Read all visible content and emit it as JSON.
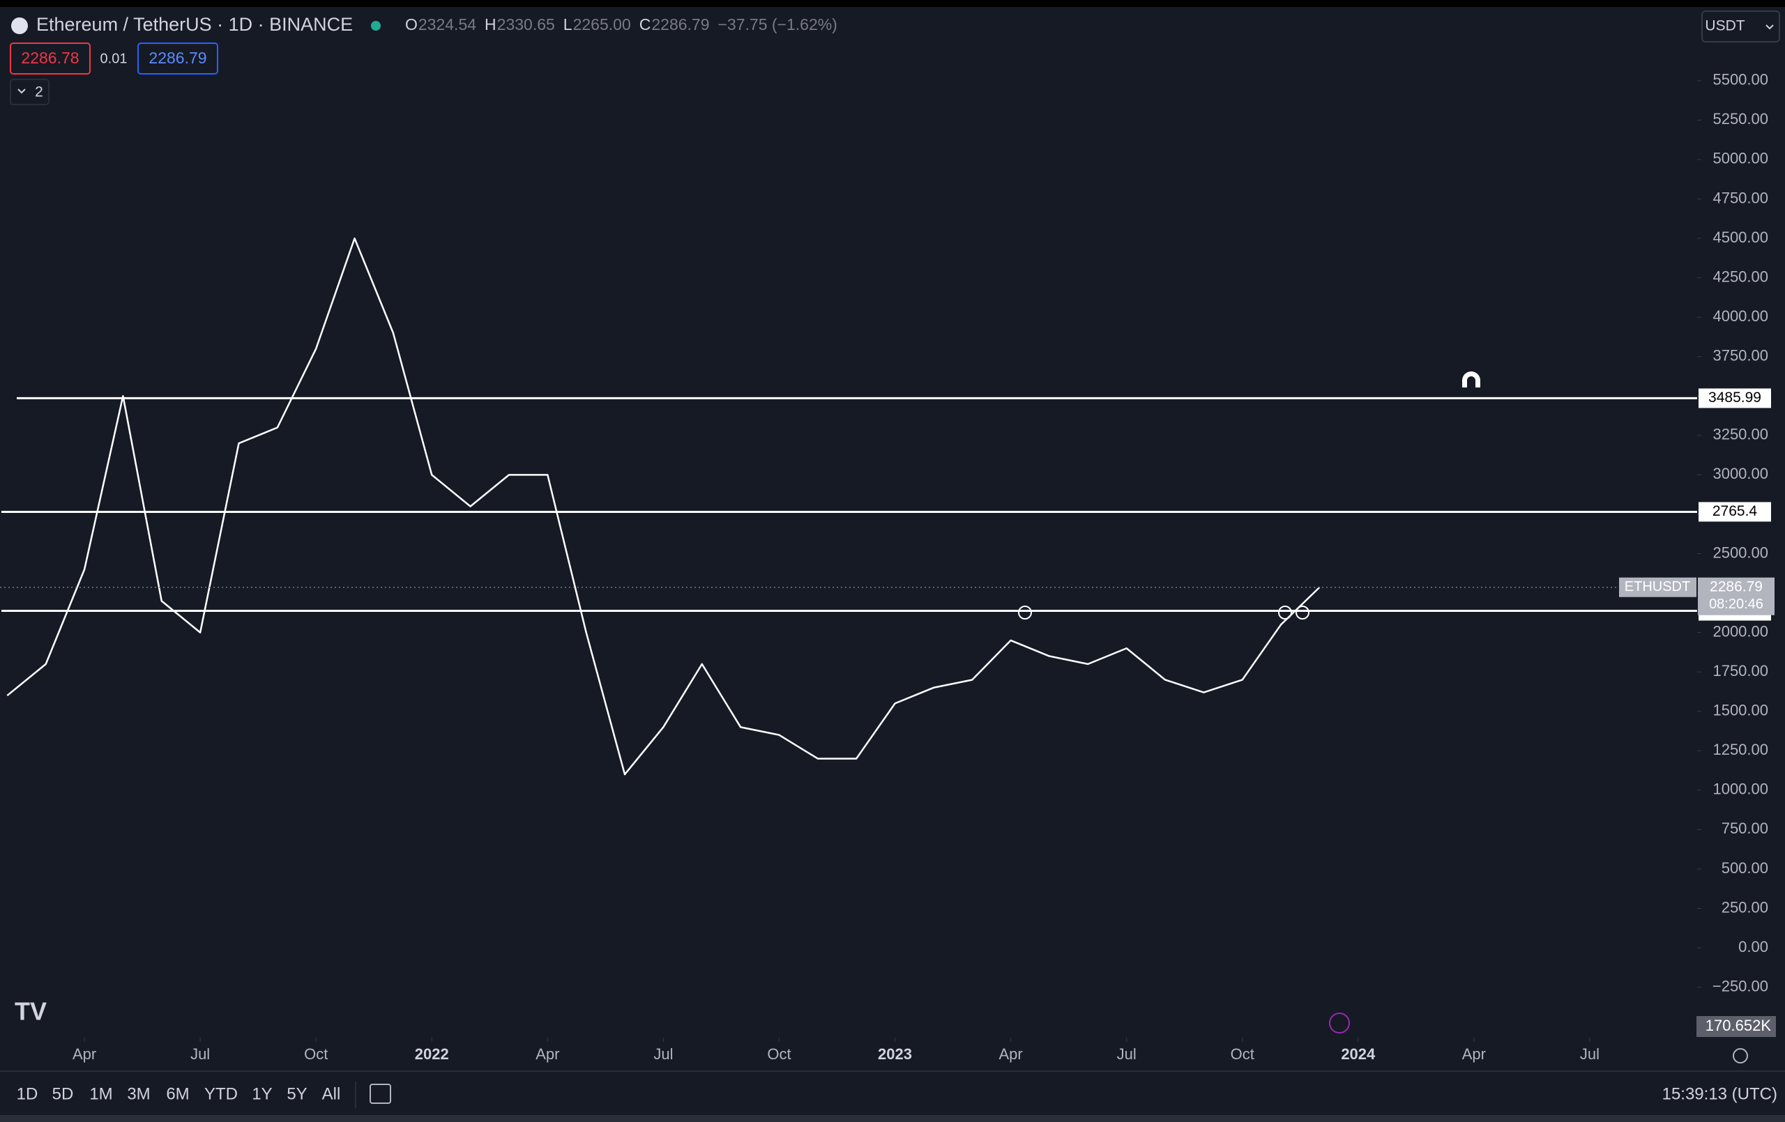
{
  "header": {
    "title": "Ethereum / TetherUS · 1D · BINANCE",
    "ohlc": [
      {
        "key": "O",
        "value": "2324.54"
      },
      {
        "key": "H",
        "value": "2330.65"
      },
      {
        "key": "L",
        "value": "2265.00"
      },
      {
        "key": "C",
        "value": "2286.79"
      }
    ],
    "change": "−37.75 (−1.62%)",
    "sell": "2286.78",
    "spread": "0.01",
    "buy": "2286.79",
    "indicators": "2",
    "currency": "USDT"
  },
  "chart_data": {
    "type": "line",
    "color": "#ffffff",
    "x": [
      "2021-02",
      "2021-03",
      "2021-04",
      "2021-05",
      "2021-06",
      "2021-07",
      "2021-08",
      "2021-09",
      "2021-10",
      "2021-11",
      "2021-12",
      "2022-01",
      "2022-02",
      "2022-03",
      "2022-04",
      "2022-05",
      "2022-06",
      "2022-07",
      "2022-08",
      "2022-09",
      "2022-10",
      "2022-11",
      "2022-12",
      "2023-01",
      "2023-02",
      "2023-03",
      "2023-04",
      "2023-05",
      "2023-06",
      "2023-07",
      "2023-08",
      "2023-09",
      "2023-10",
      "2023-11",
      "2023-12"
    ],
    "values": [
      1600,
      1800,
      2400,
      3500,
      2200,
      2000,
      3200,
      3300,
      3800,
      4500,
      3900,
      3000,
      2800,
      3000,
      3000,
      2000,
      1100,
      1400,
      1800,
      1400,
      1350,
      1200,
      1200,
      1550,
      1650,
      1700,
      1950,
      1850,
      1800,
      1900,
      1700,
      1620,
      1700,
      2050,
      2286.79
    ],
    "xlim": [
      "2021-01",
      "2024-10"
    ],
    "xticks": [
      {
        "value": "2021-04",
        "label": "Apr"
      },
      {
        "value": "2021-07",
        "label": "Jul"
      },
      {
        "value": "2021-10",
        "label": "Oct"
      },
      {
        "value": "2022-01",
        "label": "2022"
      },
      {
        "value": "2022-04",
        "label": "Apr"
      },
      {
        "value": "2022-07",
        "label": "Jul"
      },
      {
        "value": "2022-10",
        "label": "Oct"
      },
      {
        "value": "2023-01",
        "label": "2023"
      },
      {
        "value": "2023-04",
        "label": "Apr"
      },
      {
        "value": "2023-07",
        "label": "Jul"
      },
      {
        "value": "2023-10",
        "label": "Oct"
      },
      {
        "value": "2024-01",
        "label": "2024"
      },
      {
        "value": "2024-04",
        "label": "Apr"
      },
      {
        "value": "2024-07",
        "label": "Jul"
      }
    ],
    "ylim": [
      -570,
      5760
    ],
    "yticks": [
      {
        "value": -250,
        "label": "−250.00"
      },
      {
        "value": 0,
        "label": "0.00"
      },
      {
        "value": 250,
        "label": "250.00"
      },
      {
        "value": 500,
        "label": "500.00"
      },
      {
        "value": 750,
        "label": "750.00"
      },
      {
        "value": 1000,
        "label": "1000.00"
      },
      {
        "value": 1250,
        "label": "1250.00"
      },
      {
        "value": 1500,
        "label": "1500.00"
      },
      {
        "value": 1750,
        "label": "1750.00"
      },
      {
        "value": 2000,
        "label": "2000.00"
      },
      {
        "value": 2250,
        "label": "2250.00"
      },
      {
        "value": 2500,
        "label": "2500.00"
      },
      {
        "value": 2750,
        "label": "2750.00"
      },
      {
        "value": 3000,
        "label": "3000.00"
      },
      {
        "value": 3250,
        "label": "3250.00"
      },
      {
        "value": 3500,
        "label": "3500.00"
      },
      {
        "value": 3750,
        "label": "3750.00"
      },
      {
        "value": 4000,
        "label": "4000.00"
      },
      {
        "value": 4250,
        "label": "4250.00"
      },
      {
        "value": 4500,
        "label": "4500.00"
      },
      {
        "value": 4750,
        "label": "4750.00"
      },
      {
        "value": 5000,
        "label": "5000.00"
      },
      {
        "value": 5250,
        "label": "5250.00"
      },
      {
        "value": 5500,
        "label": "5500.00"
      }
    ],
    "levels": [
      3485.99,
      2765.4,
      2137.52
    ],
    "price_label": {
      "name": "ETHUSDT",
      "value": 2286.79,
      "countdown": "08:20:46"
    },
    "volume_label": "170.652K"
  },
  "toolbar": {
    "ranges": [
      "1D",
      "5D",
      "1M",
      "3M",
      "6M",
      "YTD",
      "1Y",
      "5Y",
      "All"
    ],
    "clock": "15:39:13 (UTC)"
  }
}
